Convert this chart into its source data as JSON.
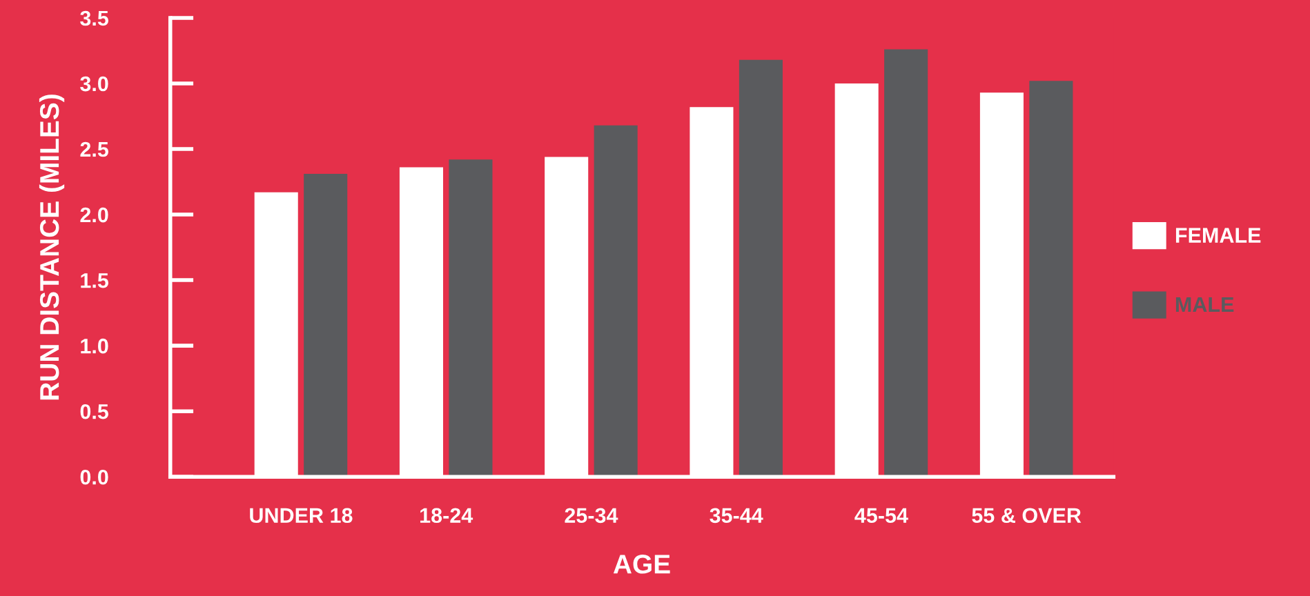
{
  "chart_data": {
    "type": "bar",
    "xlabel": "AGE",
    "ylabel": "RUN DISTANCE (MILES)",
    "categories": [
      "UNDER 18",
      "18-24",
      "25-34",
      "35-44",
      "45-54",
      "55 & OVER"
    ],
    "series": [
      {
        "name": "FEMALE",
        "color": "#ffffff",
        "values": [
          2.17,
          2.36,
          2.44,
          2.82,
          3.0,
          2.93
        ]
      },
      {
        "name": "MALE",
        "color": "#5a5b5e",
        "values": [
          2.31,
          2.42,
          2.68,
          3.18,
          3.26,
          3.02
        ]
      }
    ],
    "ylim": [
      0,
      3.5
    ],
    "yticks": [
      {
        "value": 0,
        "label": "0.0"
      },
      0.5,
      {
        "value": 1,
        "label": "1.0"
      },
      1.5,
      {
        "value": 2,
        "label": "2.0"
      },
      2.5,
      {
        "value": 3,
        "label": "3.0"
      },
      3.5
    ],
    "grid": false,
    "legend": "right"
  }
}
